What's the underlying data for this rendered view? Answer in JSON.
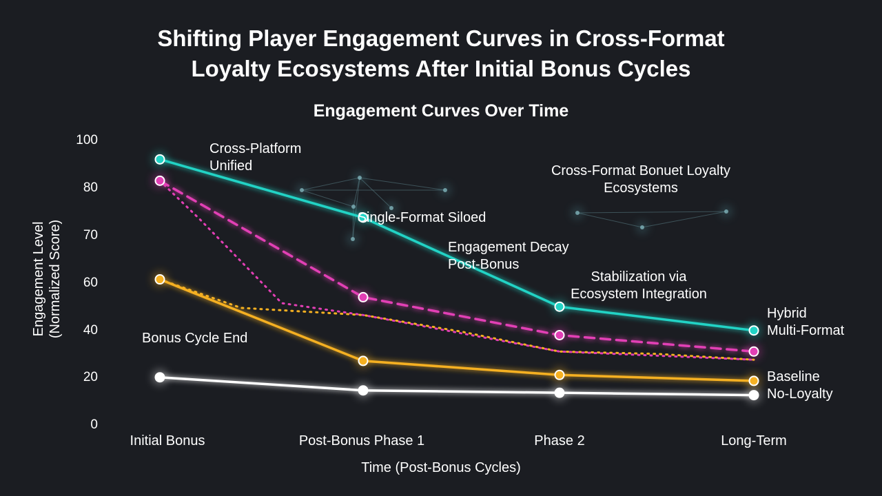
{
  "title": {
    "line1": "Shifting Player Engagement Curves in Cross-Format",
    "line2": "Loyalty Ecosystems After Initial Bonus Cycles"
  },
  "chart_data": {
    "type": "line",
    "title": "Engagement Curves Over Time",
    "xlabel": "Time (Post-Bonus Cycles)",
    "ylabel_line1": "Engagement Level",
    "ylabel_line2": "(Normalized Score)",
    "categories": [
      "Initial Bonus",
      "Post-Bonus Phase 1",
      "Phase 2",
      "Long-Term"
    ],
    "y_ticks": [
      "0",
      "20",
      "40",
      "60",
      "70",
      "80",
      "100"
    ],
    "background_network": true,
    "series": [
      {
        "name": "Cross-Platform Unified",
        "color": "#22d3c5",
        "style": "solid",
        "values": [
          91.5,
          73.5,
          49.5,
          39.5
        ]
      },
      {
        "name": "Single-Format Siloed",
        "color": "#e23fb5",
        "style": "dashed",
        "values": [
          82.5,
          53.5,
          37.5,
          30.5
        ]
      },
      {
        "name": "",
        "color": "#f5b021",
        "style": "solid",
        "values": [
          60.5,
          26.5,
          20.5,
          18
        ]
      },
      {
        "name": "Baseline No-Loyalty",
        "color": "#ffffff",
        "style": "solid",
        "values": [
          19.5,
          14,
          13,
          12
        ]
      }
    ],
    "dotted_lines": [
      {
        "color": "#f5b021",
        "points": [
          [
            0,
            60.5
          ],
          [
            0.4,
            49
          ],
          [
            0.7,
            47.5
          ],
          [
            1.0,
            46
          ],
          [
            1.5,
            39
          ],
          [
            2.0,
            30.5
          ],
          [
            2.5,
            29.5
          ],
          [
            3.0,
            27
          ]
        ]
      },
      {
        "color": "#e23fb5",
        "points": [
          [
            0,
            82.5
          ],
          [
            0.2,
            73
          ],
          [
            0.6,
            51
          ],
          [
            1.0,
            46
          ],
          [
            2.0,
            30.5
          ],
          [
            3.0,
            27
          ]
        ]
      }
    ],
    "annotations": [
      {
        "lines": [
          "Cross-Platform",
          "Unified"
        ]
      },
      {
        "lines": [
          "Single-Format Siloed"
        ]
      },
      {
        "lines": [
          "Engagement Decay",
          "Post-Bonus"
        ]
      },
      {
        "lines": [
          "Cross-Format Bonuet Loyalty",
          "Ecosystems"
        ]
      },
      {
        "lines": [
          "Stabilization via",
          "Ecosystem Integration"
        ]
      },
      {
        "lines": [
          "Bonus Cycle End"
        ]
      },
      {
        "lines": [
          "Hybrid",
          "Multi-Format"
        ]
      },
      {
        "lines": [
          "Baseline",
          "No-Loyalty"
        ]
      }
    ]
  }
}
